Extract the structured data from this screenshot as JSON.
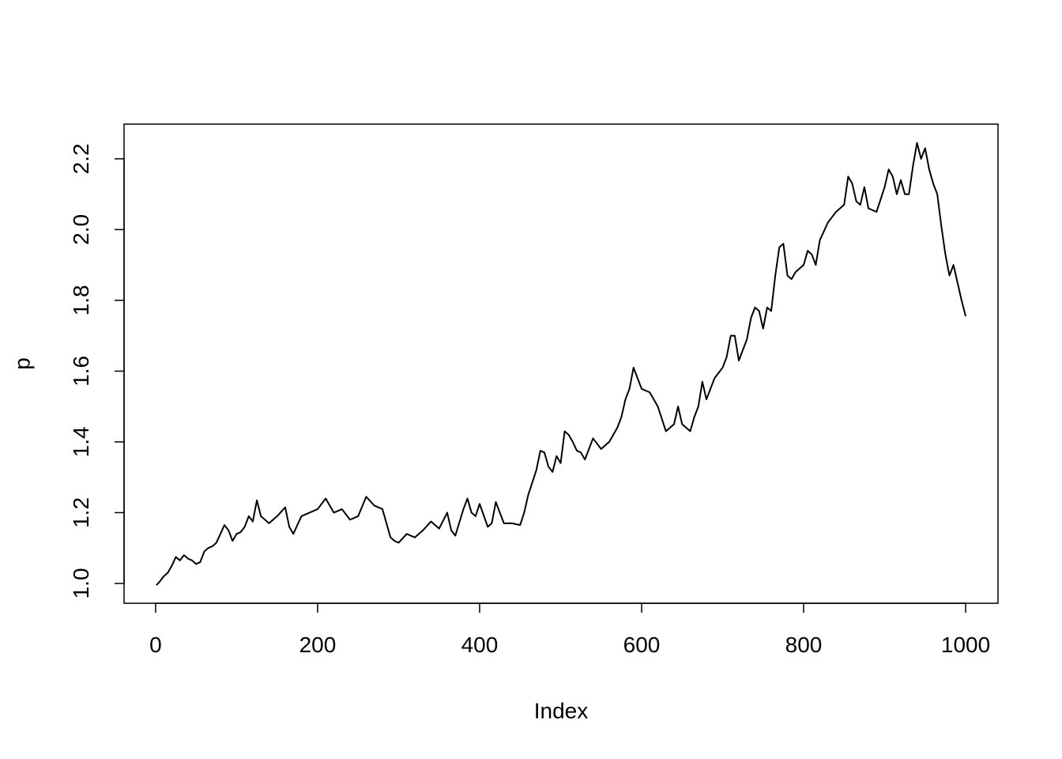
{
  "chart_data": {
    "type": "line",
    "x_label": "Index",
    "y_label": "p",
    "x": [
      1,
      5,
      10,
      15,
      20,
      25,
      30,
      35,
      40,
      45,
      50,
      55,
      60,
      65,
      70,
      75,
      80,
      85,
      90,
      95,
      100,
      105,
      110,
      115,
      120,
      125,
      130,
      140,
      150,
      160,
      165,
      170,
      180,
      190,
      200,
      210,
      220,
      230,
      240,
      250,
      260,
      270,
      280,
      290,
      295,
      300,
      310,
      320,
      330,
      340,
      350,
      360,
      365,
      370,
      380,
      385,
      390,
      395,
      400,
      410,
      415,
      420,
      430,
      440,
      450,
      455,
      460,
      470,
      475,
      480,
      485,
      490,
      495,
      500,
      505,
      510,
      515,
      520,
      525,
      530,
      540,
      550,
      560,
      570,
      575,
      580,
      585,
      590,
      595,
      600,
      610,
      620,
      630,
      640,
      645,
      650,
      660,
      665,
      670,
      675,
      680,
      690,
      700,
      705,
      710,
      715,
      720,
      730,
      735,
      740,
      745,
      750,
      755,
      760,
      765,
      770,
      775,
      780,
      785,
      790,
      800,
      805,
      810,
      815,
      820,
      830,
      840,
      850,
      855,
      860,
      865,
      870,
      875,
      880,
      890,
      900,
      905,
      910,
      915,
      920,
      925,
      930,
      935,
      940,
      945,
      950,
      955,
      960,
      965,
      970,
      975,
      980,
      985,
      990,
      995,
      1000
    ],
    "series": [
      {
        "color": "#000000",
        "values": [
          0.995,
          1.005,
          1.02,
          1.03,
          1.05,
          1.075,
          1.065,
          1.08,
          1.07,
          1.065,
          1.055,
          1.06,
          1.09,
          1.1,
          1.105,
          1.115,
          1.14,
          1.165,
          1.15,
          1.12,
          1.14,
          1.145,
          1.16,
          1.19,
          1.175,
          1.235,
          1.19,
          1.17,
          1.19,
          1.215,
          1.16,
          1.14,
          1.19,
          1.2,
          1.21,
          1.24,
          1.2,
          1.21,
          1.18,
          1.19,
          1.245,
          1.22,
          1.21,
          1.13,
          1.12,
          1.115,
          1.14,
          1.13,
          1.15,
          1.175,
          1.155,
          1.2,
          1.15,
          1.135,
          1.21,
          1.24,
          1.2,
          1.19,
          1.225,
          1.16,
          1.17,
          1.23,
          1.17,
          1.17,
          1.165,
          1.2,
          1.25,
          1.32,
          1.375,
          1.37,
          1.33,
          1.315,
          1.36,
          1.34,
          1.43,
          1.42,
          1.4,
          1.375,
          1.37,
          1.35,
          1.41,
          1.38,
          1.4,
          1.44,
          1.47,
          1.52,
          1.55,
          1.61,
          1.58,
          1.55,
          1.54,
          1.5,
          1.43,
          1.45,
          1.5,
          1.45,
          1.43,
          1.47,
          1.5,
          1.57,
          1.52,
          1.58,
          1.61,
          1.64,
          1.7,
          1.7,
          1.63,
          1.69,
          1.75,
          1.78,
          1.77,
          1.72,
          1.78,
          1.77,
          1.87,
          1.95,
          1.96,
          1.87,
          1.86,
          1.88,
          1.9,
          1.94,
          1.93,
          1.9,
          1.97,
          2.02,
          2.05,
          2.07,
          2.15,
          2.13,
          2.08,
          2.07,
          2.12,
          2.06,
          2.05,
          2.12,
          2.17,
          2.15,
          2.1,
          2.14,
          2.1,
          2.1,
          2.18,
          2.245,
          2.2,
          2.23,
          2.17,
          2.13,
          2.1,
          2.01,
          1.93,
          1.87,
          1.9,
          1.85,
          1.8,
          1.755
        ]
      }
    ],
    "xlim": [
      -38.96,
      1039.96
    ],
    "ylim": [
      0.944,
      2.298
    ],
    "xticks": [
      0,
      200,
      400,
      600,
      800,
      1000
    ],
    "yticks": [
      {
        "value": 1.0,
        "label": "1.0"
      },
      1.2,
      1.4,
      1.6,
      1.8,
      {
        "value": 2.0,
        "label": "2.0"
      },
      2.2
    ]
  }
}
